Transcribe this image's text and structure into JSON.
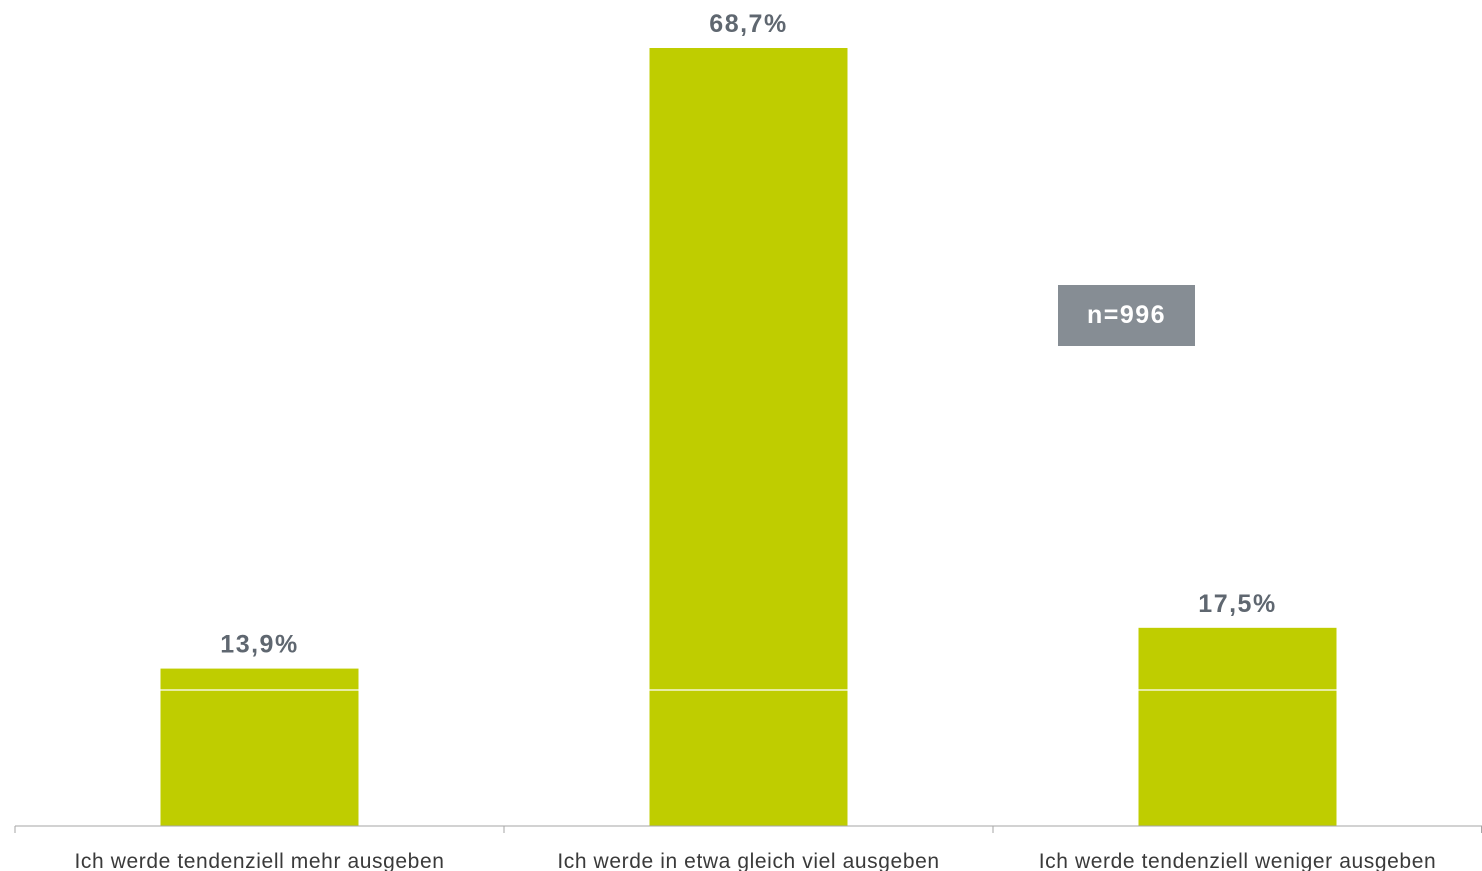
{
  "chart_data": {
    "type": "bar",
    "categories": [
      "Ich werde tendenziell mehr ausgeben",
      "Ich werde in etwa gleich viel ausgeben",
      "Ich werde tendenziell weniger ausgeben"
    ],
    "values": [
      13.9,
      68.7,
      17.5
    ],
    "value_labels": [
      "13,9%",
      "68,7%",
      "17,5%"
    ],
    "ylim": [
      0,
      68.7
    ],
    "grid": false,
    "legend": "none",
    "bar_color": "#bfcd00",
    "label_color": "#5f6770",
    "axis_color": "#a6a6a6"
  },
  "annotation": {
    "text": "n=996",
    "background": "#868d94",
    "color": "#ffffff"
  }
}
